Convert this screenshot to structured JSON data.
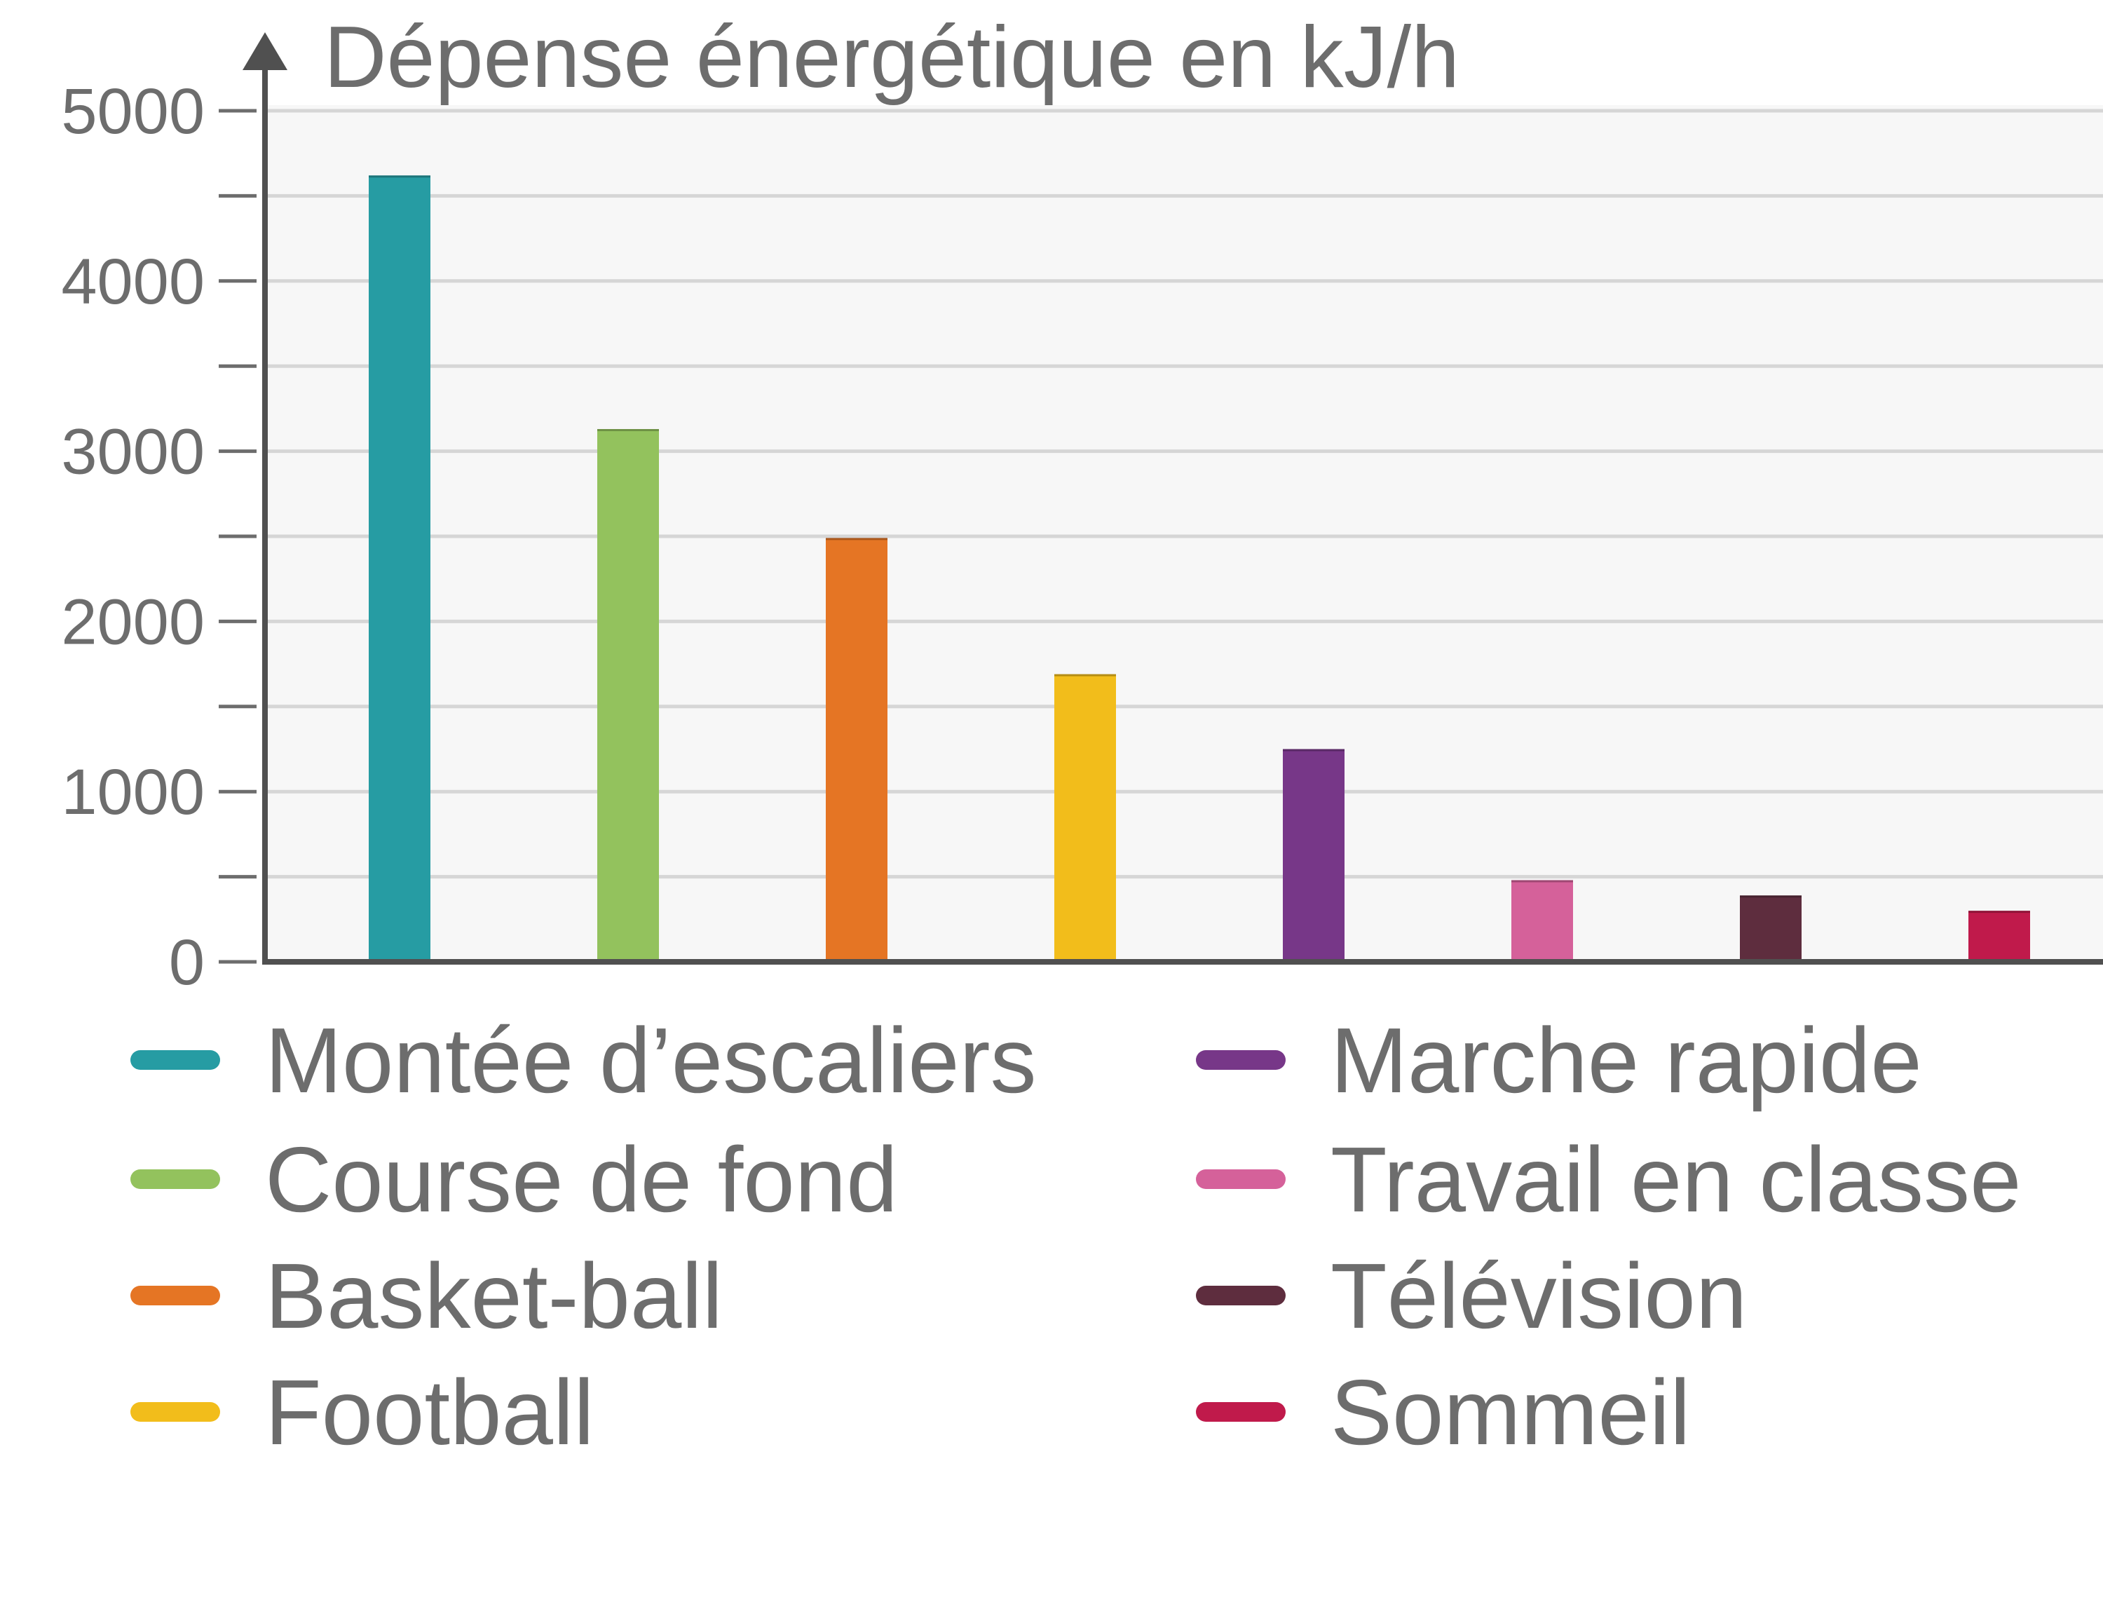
{
  "chart_data": {
    "type": "bar",
    "title": "Dépense énergétique en kJ/h",
    "ylabel": "Dépense énergétique en kJ/h",
    "xlabel": "",
    "ylim": [
      0,
      5000
    ],
    "yticks": [
      0,
      1000,
      2000,
      3000,
      4000,
      5000
    ],
    "grid": true,
    "legend_position": "bottom",
    "categories": [
      "Montée d’escaliers",
      "Course de fond",
      "Basket-ball",
      "Football",
      "Marche rapide",
      "Travail en classe",
      "Télévision",
      "Sommeil"
    ],
    "values": [
      4620,
      3130,
      2490,
      1690,
      1250,
      480,
      390,
      300
    ],
    "colors": [
      "#269ca3",
      "#93c25d",
      "#e57524",
      "#f2bd1b",
      "#773788",
      "#d5619a",
      "#5e2d3e",
      "#c01a4b"
    ]
  }
}
